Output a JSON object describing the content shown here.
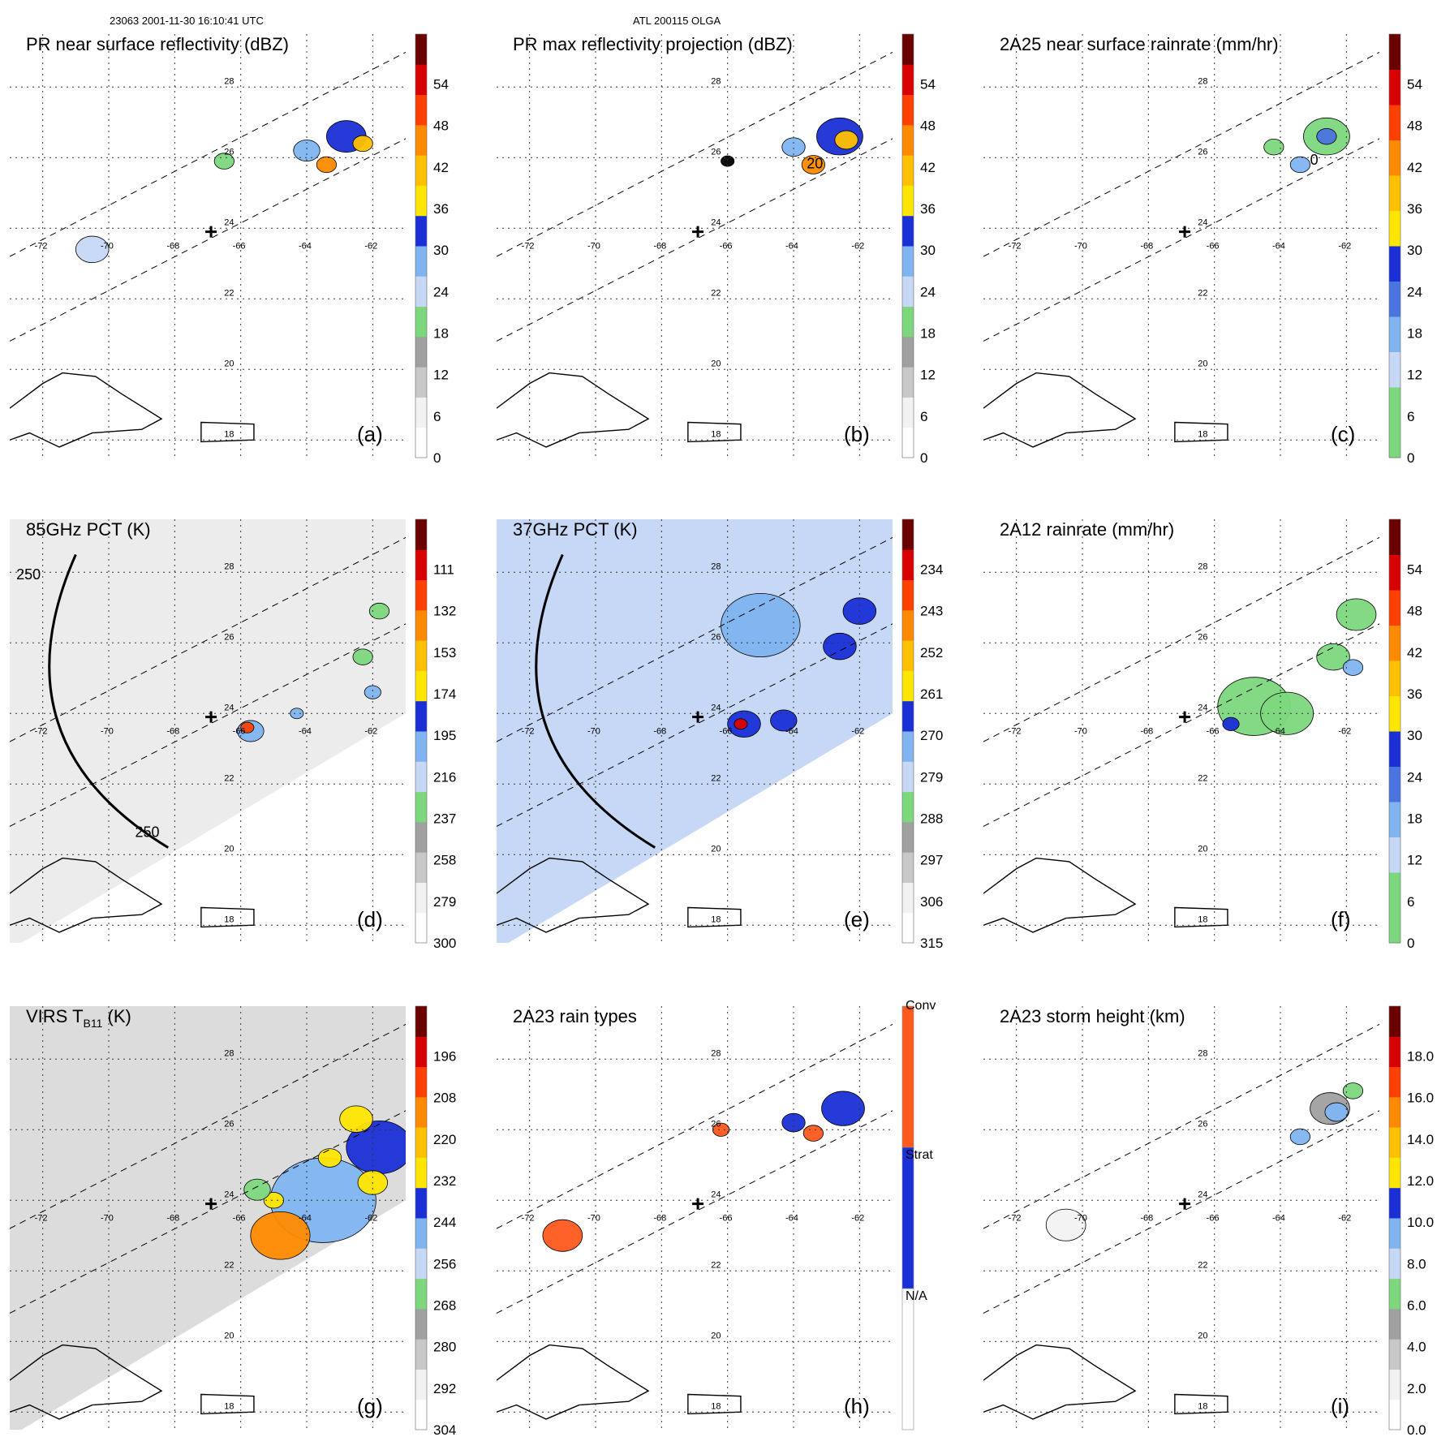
{
  "header": {
    "orbit_time": "23063 2001-11-30 16:10:41 UTC",
    "storm": "ATL 200115 OLGA"
  },
  "colors": {
    "gray_light": "#f2f2f2",
    "gray_mid": "#c8c8c8",
    "gray_dark": "#a0a0a0",
    "green": "#7dd87d",
    "light_blue": "#c6d8f5",
    "sky_blue": "#7fb4f0",
    "blue_mid": "#4a74e0",
    "blue": "#1a2fd6",
    "yellow": "#ffe600",
    "gold": "#ffc000",
    "orange": "#ff8a00",
    "red_orange": "#ff4000",
    "red": "#d80000",
    "dark_red": "#6a0000",
    "conv": "#ff5a1e",
    "strat": "#1a2fd6",
    "na": "#ffffff"
  },
  "map": {
    "lon_labels": [
      "-72",
      "-70",
      "-68",
      "-66",
      "-64",
      "-62"
    ],
    "lat_labels": [
      "28",
      "26",
      "24",
      "22",
      "20",
      "18"
    ]
  },
  "chart_data": [
    {
      "type": "heatmap",
      "id": "a",
      "title": "PR near surface reflectivity (dBZ)",
      "panel_label": "(a)",
      "colorbar": {
        "ticks": [
          "0",
          "6",
          "12",
          "18",
          "24",
          "30",
          "36",
          "42",
          "48",
          "54"
        ],
        "palette": [
          "#ffffff",
          "#f2f2f2",
          "#c8c8c8",
          "#a0a0a0",
          "#7dd87d",
          "#c6d8f5",
          "#7fb4f0",
          "#1a2fd6",
          "#ffe600",
          "#ffc000",
          "#ff8a00",
          "#ff4000",
          "#d80000",
          "#6a0000"
        ]
      },
      "xlim": [
        -73,
        -61
      ],
      "ylim": [
        17.5,
        29.5
      ],
      "storm_center": [
        -66.9,
        23.9
      ],
      "swath": "pr",
      "features": [
        {
          "lon": -62.8,
          "lat": 26.6,
          "r": 0.6,
          "c": "#1a2fd6"
        },
        {
          "lon": -62.3,
          "lat": 26.4,
          "r": 0.3,
          "c": "#ffc000"
        },
        {
          "lon": -63.4,
          "lat": 25.8,
          "r": 0.3,
          "c": "#ff8a00"
        },
        {
          "lon": -64.0,
          "lat": 26.2,
          "r": 0.4,
          "c": "#7fb4f0"
        },
        {
          "lon": -66.5,
          "lat": 25.9,
          "r": 0.3,
          "c": "#7dd87d"
        },
        {
          "lon": -70.5,
          "lat": 23.4,
          "r": 0.5,
          "c": "#c6d8f5"
        }
      ]
    },
    {
      "type": "heatmap",
      "id": "b",
      "title": "PR max reflectivity projection (dBZ)",
      "panel_label": "(b)",
      "colorbar": {
        "ticks": [
          "0",
          "6",
          "12",
          "18",
          "24",
          "30",
          "36",
          "42",
          "48",
          "54"
        ],
        "palette": [
          "#ffffff",
          "#f2f2f2",
          "#c8c8c8",
          "#a0a0a0",
          "#7dd87d",
          "#c6d8f5",
          "#7fb4f0",
          "#1a2fd6",
          "#ffe600",
          "#ffc000",
          "#ff8a00",
          "#ff4000",
          "#d80000",
          "#6a0000"
        ]
      },
      "xlim": [
        -73,
        -61
      ],
      "ylim": [
        17.5,
        29.5
      ],
      "storm_center": [
        -66.9,
        23.9
      ],
      "swath": "pr",
      "features": [
        {
          "lon": -62.6,
          "lat": 26.6,
          "r": 0.7,
          "c": "#1a2fd6"
        },
        {
          "lon": -62.4,
          "lat": 26.5,
          "r": 0.35,
          "c": "#ffc000"
        },
        {
          "lon": -63.4,
          "lat": 25.8,
          "r": 0.35,
          "c": "#ff8a00"
        },
        {
          "lon": -64.0,
          "lat": 26.3,
          "r": 0.35,
          "c": "#7fb4f0"
        },
        {
          "lon": -66.0,
          "lat": 25.9,
          "r": 0.2,
          "c": "#000000"
        }
      ],
      "annotations": [
        "20"
      ]
    },
    {
      "type": "heatmap",
      "id": "c",
      "title": "2A25 near surface rainrate (mm/hr)",
      "panel_label": "(c)",
      "colorbar": {
        "ticks": [
          "0",
          "6",
          "12",
          "18",
          "24",
          "30",
          "36",
          "42",
          "48",
          "54"
        ],
        "palette": [
          "#7dd87d",
          "#7dd87d",
          "#c6d8f5",
          "#7fb4f0",
          "#4a74e0",
          "#1a2fd6",
          "#ffe600",
          "#ffc000",
          "#ff8a00",
          "#ff4000",
          "#d80000",
          "#6a0000"
        ]
      },
      "xlim": [
        -73,
        -61
      ],
      "ylim": [
        17.5,
        29.5
      ],
      "storm_center": [
        -66.9,
        23.9
      ],
      "swath": "pr",
      "features": [
        {
          "lon": -62.6,
          "lat": 26.6,
          "r": 0.7,
          "c": "#7dd87d"
        },
        {
          "lon": -62.6,
          "lat": 26.6,
          "r": 0.3,
          "c": "#4a74e0"
        },
        {
          "lon": -63.4,
          "lat": 25.8,
          "r": 0.3,
          "c": "#7fb4f0"
        },
        {
          "lon": -64.2,
          "lat": 26.3,
          "r": 0.3,
          "c": "#7dd87d"
        }
      ],
      "annotations": [
        "0"
      ]
    },
    {
      "type": "heatmap",
      "id": "d",
      "title": "85GHz PCT (K)",
      "panel_label": "(d)",
      "colorbar": {
        "ticks": [
          "300",
          "279",
          "258",
          "237",
          "216",
          "195",
          "174",
          "153",
          "132",
          "111"
        ],
        "palette": [
          "#ffffff",
          "#f2f2f2",
          "#c8c8c8",
          "#a0a0a0",
          "#7dd87d",
          "#c6d8f5",
          "#7fb4f0",
          "#1a2fd6",
          "#ffe600",
          "#ffc000",
          "#ff8a00",
          "#ff4000",
          "#d80000",
          "#6a0000"
        ]
      },
      "xlim": [
        -73,
        -61
      ],
      "ylim": [
        17.5,
        29.5
      ],
      "storm_center": [
        -66.9,
        23.9
      ],
      "swath": "tmi",
      "swath_fill": "#ececec",
      "arc": true,
      "features": [
        {
          "lon": -65.7,
          "lat": 23.5,
          "r": 0.4,
          "c": "#7fb4f0"
        },
        {
          "lon": -65.8,
          "lat": 23.6,
          "r": 0.2,
          "c": "#ff4000"
        },
        {
          "lon": -62.3,
          "lat": 25.6,
          "r": 0.3,
          "c": "#7dd87d"
        },
        {
          "lon": -62.0,
          "lat": 24.6,
          "r": 0.25,
          "c": "#7fb4f0"
        },
        {
          "lon": -61.8,
          "lat": 26.9,
          "r": 0.3,
          "c": "#7dd87d"
        },
        {
          "lon": -64.3,
          "lat": 24.0,
          "r": 0.2,
          "c": "#7fb4f0"
        }
      ],
      "annotations": [
        "250",
        "250"
      ]
    },
    {
      "type": "heatmap",
      "id": "e",
      "title": "37GHz PCT (K)",
      "panel_label": "(e)",
      "colorbar": {
        "ticks": [
          "315",
          "306",
          "297",
          "288",
          "279",
          "270",
          "261",
          "252",
          "243",
          "234"
        ],
        "palette": [
          "#ffffff",
          "#f2f2f2",
          "#c8c8c8",
          "#a0a0a0",
          "#7dd87d",
          "#c6d8f5",
          "#7fb4f0",
          "#1a2fd6",
          "#ffe600",
          "#ffc000",
          "#ff8a00",
          "#ff4000",
          "#d80000",
          "#6a0000"
        ]
      },
      "xlim": [
        -73,
        -61
      ],
      "ylim": [
        17.5,
        29.5
      ],
      "storm_center": [
        -66.9,
        23.9
      ],
      "swath": "tmi",
      "swath_fill": "#c6d8f5",
      "arc": true,
      "features": [
        {
          "lon": -65.5,
          "lat": 23.7,
          "r": 0.5,
          "c": "#1a2fd6"
        },
        {
          "lon": -65.6,
          "lat": 23.7,
          "r": 0.2,
          "c": "#d80000"
        },
        {
          "lon": -64.3,
          "lat": 23.8,
          "r": 0.4,
          "c": "#1a2fd6"
        },
        {
          "lon": -62.6,
          "lat": 25.9,
          "r": 0.5,
          "c": "#1a2fd6"
        },
        {
          "lon": -62.0,
          "lat": 26.9,
          "r": 0.5,
          "c": "#1a2fd6"
        },
        {
          "lon": -65.0,
          "lat": 26.5,
          "r": 1.2,
          "c": "#7fb4f0"
        }
      ]
    },
    {
      "type": "heatmap",
      "id": "f",
      "title": "2A12 rainrate (mm/hr)",
      "panel_label": "(f)",
      "colorbar": {
        "ticks": [
          "0",
          "6",
          "12",
          "18",
          "24",
          "30",
          "36",
          "42",
          "48",
          "54"
        ],
        "palette": [
          "#7dd87d",
          "#7dd87d",
          "#c6d8f5",
          "#7fb4f0",
          "#4a74e0",
          "#1a2fd6",
          "#ffe600",
          "#ffc000",
          "#ff8a00",
          "#ff4000",
          "#d80000",
          "#6a0000"
        ]
      },
      "xlim": [
        -73,
        -61
      ],
      "ylim": [
        17.5,
        29.5
      ],
      "storm_center": [
        -66.9,
        23.9
      ],
      "swath": "pr",
      "features": [
        {
          "lon": -64.8,
          "lat": 24.2,
          "r": 1.1,
          "c": "#7dd87d"
        },
        {
          "lon": -63.8,
          "lat": 24.0,
          "r": 0.8,
          "c": "#7dd87d"
        },
        {
          "lon": -61.7,
          "lat": 26.8,
          "r": 0.6,
          "c": "#7dd87d"
        },
        {
          "lon": -62.4,
          "lat": 25.6,
          "r": 0.5,
          "c": "#7dd87d"
        },
        {
          "lon": -65.5,
          "lat": 23.7,
          "r": 0.25,
          "c": "#1a2fd6"
        },
        {
          "lon": -61.8,
          "lat": 25.3,
          "r": 0.3,
          "c": "#7fb4f0"
        }
      ]
    },
    {
      "type": "heatmap",
      "id": "g",
      "title": "VIRS T",
      "title_sub": "B11",
      "title_end": " (K)",
      "panel_label": "(g)",
      "colorbar": {
        "ticks": [
          "304",
          "292",
          "280",
          "268",
          "256",
          "244",
          "232",
          "220",
          "208",
          "196"
        ],
        "palette": [
          "#ffffff",
          "#f2f2f2",
          "#c8c8c8",
          "#a0a0a0",
          "#7dd87d",
          "#c6d8f5",
          "#7fb4f0",
          "#1a2fd6",
          "#ffe600",
          "#ffc000",
          "#ff8a00",
          "#ff4000",
          "#d80000",
          "#6a0000"
        ]
      },
      "xlim": [
        -73,
        -61
      ],
      "ylim": [
        17.5,
        29.5
      ],
      "storm_center": [
        -66.9,
        23.9
      ],
      "swath": "tmi",
      "swath_fill": "#dcdcdc",
      "features": [
        {
          "lon": -63.5,
          "lat": 24.0,
          "r": 1.6,
          "c": "#7fb4f0"
        },
        {
          "lon": -61.8,
          "lat": 25.5,
          "r": 1.0,
          "c": "#1a2fd6"
        },
        {
          "lon": -64.8,
          "lat": 23.0,
          "r": 0.9,
          "c": "#ff8a00"
        },
        {
          "lon": -62.5,
          "lat": 26.3,
          "r": 0.5,
          "c": "#ffe600"
        },
        {
          "lon": -62.0,
          "lat": 24.5,
          "r": 0.45,
          "c": "#ffe600"
        },
        {
          "lon": -63.3,
          "lat": 25.2,
          "r": 0.35,
          "c": "#ffe600"
        },
        {
          "lon": -65.0,
          "lat": 24.0,
          "r": 0.3,
          "c": "#ffe600"
        },
        {
          "lon": -65.5,
          "lat": 24.3,
          "r": 0.4,
          "c": "#7dd87d"
        }
      ]
    },
    {
      "type": "heatmap",
      "id": "h",
      "title": "2A23 rain types",
      "panel_label": "(h)",
      "colorbar": {
        "categorical": true,
        "ticks": [
          "N/A",
          "Strat",
          "Conv"
        ],
        "palette": [
          "#ffffff",
          "#1a2fd6",
          "#ff5a1e"
        ]
      },
      "xlim": [
        -73,
        -61
      ],
      "ylim": [
        17.5,
        29.5
      ],
      "storm_center": [
        -66.9,
        23.9
      ],
      "swath": "pr",
      "features": [
        {
          "lon": -62.5,
          "lat": 26.6,
          "r": 0.65,
          "c": "#1a2fd6"
        },
        {
          "lon": -63.4,
          "lat": 25.9,
          "r": 0.3,
          "c": "#ff5a1e"
        },
        {
          "lon": -64.0,
          "lat": 26.2,
          "r": 0.35,
          "c": "#1a2fd6"
        },
        {
          "lon": -66.2,
          "lat": 26.0,
          "r": 0.25,
          "c": "#ff5a1e"
        },
        {
          "lon": -71.0,
          "lat": 23.0,
          "r": 0.6,
          "c": "#ff5a1e"
        }
      ]
    },
    {
      "type": "heatmap",
      "id": "i",
      "title": "2A23 storm height (km)",
      "panel_label": "(i)",
      "colorbar": {
        "ticks": [
          "0.0",
          "2.0",
          "4.0",
          "6.0",
          "8.0",
          "10.0",
          "12.0",
          "14.0",
          "16.0",
          "18.0"
        ],
        "palette": [
          "#ffffff",
          "#f2f2f2",
          "#c8c8c8",
          "#a0a0a0",
          "#7dd87d",
          "#c6d8f5",
          "#7fb4f0",
          "#1a2fd6",
          "#ffe600",
          "#ffc000",
          "#ff8a00",
          "#ff4000",
          "#d80000",
          "#6a0000"
        ]
      },
      "xlim": [
        -73,
        -61
      ],
      "ylim": [
        17.5,
        29.5
      ],
      "storm_center": [
        -66.9,
        23.9
      ],
      "swath": "pr",
      "features": [
        {
          "lon": -62.5,
          "lat": 26.6,
          "r": 0.6,
          "c": "#a0a0a0"
        },
        {
          "lon": -62.3,
          "lat": 26.5,
          "r": 0.35,
          "c": "#7fb4f0"
        },
        {
          "lon": -61.8,
          "lat": 27.1,
          "r": 0.3,
          "c": "#7dd87d"
        },
        {
          "lon": -63.4,
          "lat": 25.8,
          "r": 0.3,
          "c": "#7fb4f0"
        },
        {
          "lon": -70.5,
          "lat": 23.3,
          "r": 0.6,
          "c": "#f2f2f2"
        }
      ]
    }
  ]
}
